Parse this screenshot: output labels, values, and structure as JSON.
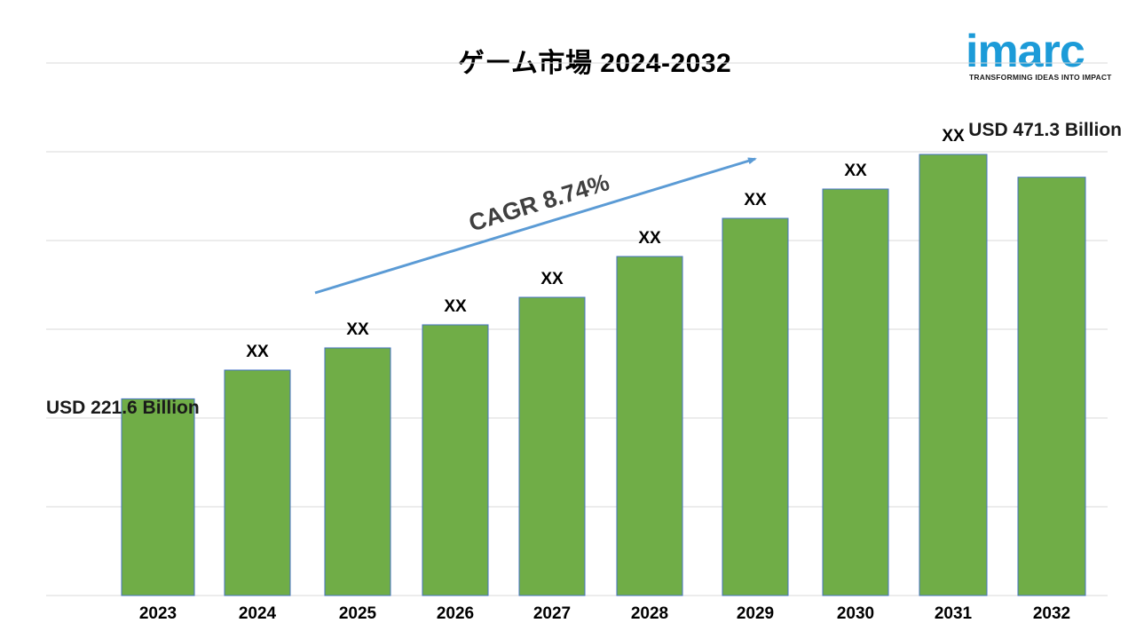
{
  "brand": {
    "name": "imarc",
    "tagline": "TRANSFORMING IDEAS INTO IMPACT",
    "color": "#1c9bd8"
  },
  "chart_data": {
    "type": "bar",
    "title": "ゲーム市場 2024-2032",
    "categories": [
      "2023",
      "2024",
      "2025",
      "2026",
      "2027",
      "2028",
      "2029",
      "2030",
      "2031",
      "2032"
    ],
    "values": [
      221.6,
      254,
      279,
      305,
      336,
      382,
      425,
      458,
      497,
      471.3
    ],
    "data_labels": [
      "USD 221.6 Billion",
      "XX",
      "XX",
      "XX",
      "XX",
      "XX",
      "XX",
      "XX",
      "XX",
      "USD 471.3 Billion"
    ],
    "ylim": [
      0,
      600
    ],
    "grid": true,
    "bar_color": "#70ad47",
    "bar_edge_color": "#4472c4",
    "annotation": {
      "text": "CAGR 8.74%",
      "arrow_color": "#5b9bd5"
    },
    "xlabel": "",
    "ylabel": ""
  }
}
